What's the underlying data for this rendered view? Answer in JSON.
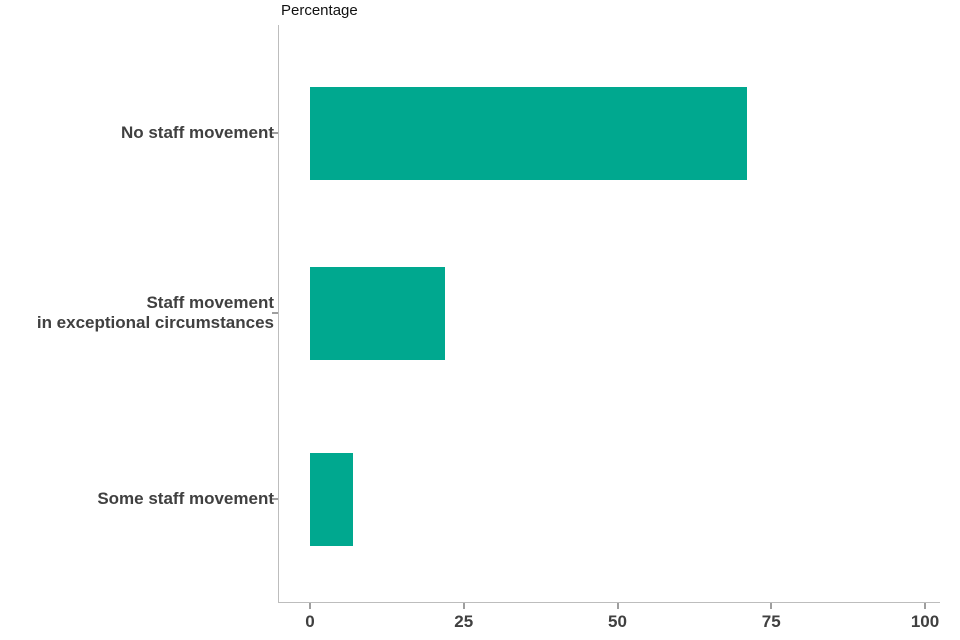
{
  "chart_data": {
    "type": "bar",
    "orientation": "horizontal",
    "title": "Percentage",
    "categories": [
      "No staff movement",
      "Staff movement in exceptional circumstances",
      "Some staff movement"
    ],
    "category_lines": [
      [
        "No staff movement"
      ],
      [
        "Staff movement",
        "in exceptional circumstances"
      ],
      [
        "Some staff movement"
      ]
    ],
    "values": [
      71,
      22,
      7
    ],
    "xlabel": "Percentage",
    "ylabel": "",
    "xlim": [
      0,
      100
    ],
    "xticks": [
      "0",
      "25",
      "50",
      "75",
      "100"
    ],
    "xtick_values": [
      0,
      25,
      50,
      75,
      100
    ],
    "bar_color": "#00a88f",
    "axis_color": "#bdbdbd",
    "label_color": "#404040",
    "grid": false,
    "legend": "none"
  }
}
